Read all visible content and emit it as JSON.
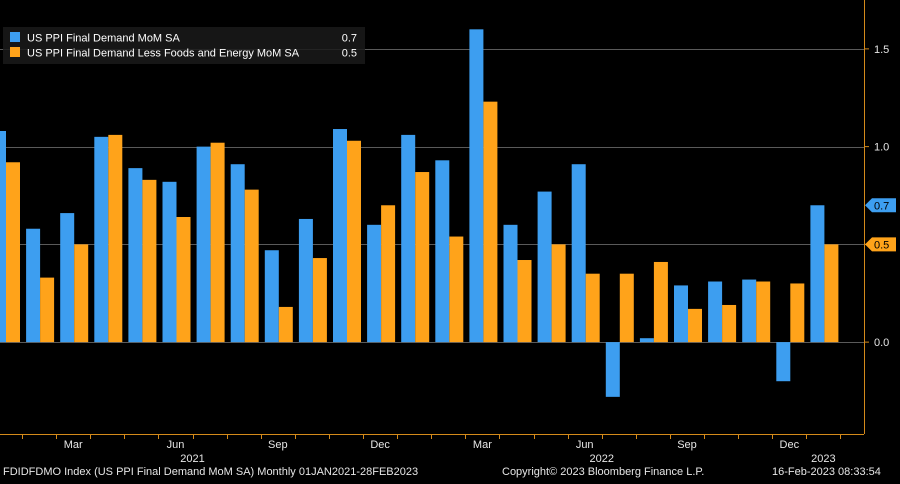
{
  "chart_data": {
    "type": "bar",
    "categories": [
      "Jan 2021",
      "Feb 2021",
      "Mar 2021",
      "Apr 2021",
      "May 2021",
      "Jun 2021",
      "Jul 2021",
      "Aug 2021",
      "Sep 2021",
      "Oct 2021",
      "Nov 2021",
      "Dec 2021",
      "Jan 2022",
      "Feb 2022",
      "Mar 2022",
      "Apr 2022",
      "May 2022",
      "Jun 2022",
      "Jul 2022",
      "Aug 2022",
      "Sep 2022",
      "Oct 2022",
      "Nov 2022",
      "Dec 2022",
      "Jan 2023"
    ],
    "series": [
      {
        "name": "US PPI Final Demand MoM SA",
        "last_value": "0.7",
        "color": "#3d9ef0",
        "values": [
          1.08,
          0.58,
          0.66,
          1.05,
          0.89,
          0.82,
          1.0,
          0.91,
          0.47,
          0.63,
          1.09,
          0.6,
          1.06,
          0.93,
          1.6,
          0.6,
          0.77,
          0.91,
          -0.28,
          0.02,
          0.29,
          0.31,
          0.32,
          -0.2,
          0.7
        ]
      },
      {
        "name": "US PPI Final Demand Less Foods and Energy MoM SA",
        "last_value": "0.5",
        "color": "#ffa31a",
        "values": [
          0.92,
          0.33,
          0.5,
          1.06,
          0.83,
          0.64,
          1.02,
          0.78,
          0.18,
          0.43,
          1.03,
          0.7,
          0.87,
          0.54,
          1.23,
          0.42,
          0.5,
          0.35,
          0.35,
          0.41,
          0.17,
          0.19,
          0.31,
          0.3,
          0.5
        ]
      }
    ],
    "ylim": [
      -0.47,
      1.75
    ],
    "yticks": [
      0.0,
      0.5,
      1.0,
      1.5
    ],
    "ytick_labels": [
      "0.0",
      "0.5",
      "1.0",
      "1.5"
    ],
    "month_labels": [
      {
        "index": 2,
        "label": "Mar"
      },
      {
        "index": 5,
        "label": "Jun"
      },
      {
        "index": 8,
        "label": "Sep"
      },
      {
        "index": 11,
        "label": "Dec"
      },
      {
        "index": 14,
        "label": "Mar"
      },
      {
        "index": 17,
        "label": "Jun"
      },
      {
        "index": 20,
        "label": "Sep"
      },
      {
        "index": 23,
        "label": "Dec"
      }
    ],
    "year_labels": [
      {
        "index": 5.5,
        "label": "2021"
      },
      {
        "index": 17.5,
        "label": "2022"
      },
      {
        "index": 24,
        "label": "2023"
      }
    ],
    "grid": true,
    "legend_position": "top-left",
    "axis_side": "right"
  },
  "footer": {
    "left": "FDIDFDMO Index (US PPI Final Demand MoM SA)  Monthly 01JAN2021-28FEB2023",
    "center": "Copyright© 2023 Bloomberg Finance L.P.",
    "right": "16-Feb-2023 08:33:54"
  }
}
